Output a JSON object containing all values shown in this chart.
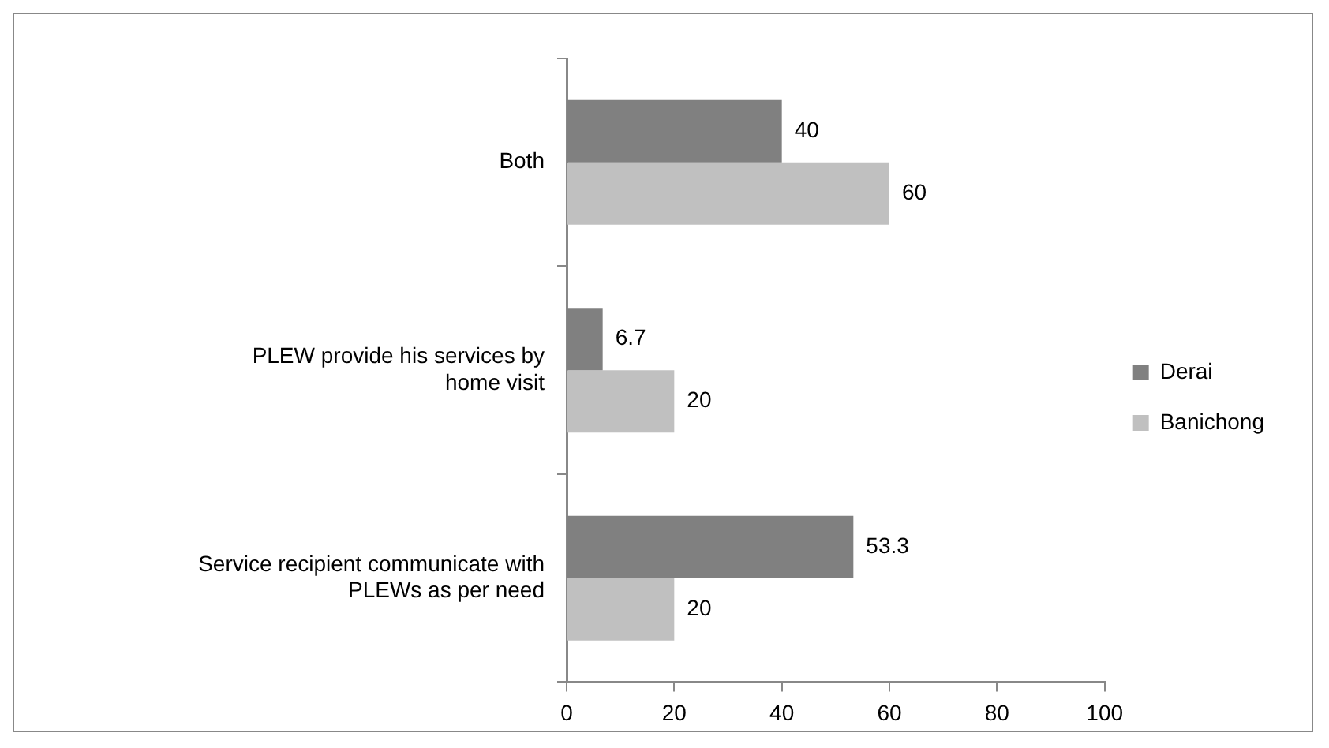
{
  "chart_data": {
    "type": "bar",
    "orientation": "horizontal",
    "categories": [
      "Both",
      "PLEW provide his services by home visit",
      "Service recipient communicate with PLEWs as per need"
    ],
    "series": [
      {
        "name": "Derai",
        "color": "#808080",
        "values": [
          40,
          6.7,
          53.3
        ]
      },
      {
        "name": "Banichong",
        "color": "#c0c0c0",
        "values": [
          60,
          20,
          20
        ]
      }
    ],
    "xlim": [
      0,
      100
    ],
    "xticks": [
      0,
      20,
      40,
      60,
      80,
      100
    ],
    "data_labels": true,
    "legend": "right"
  }
}
